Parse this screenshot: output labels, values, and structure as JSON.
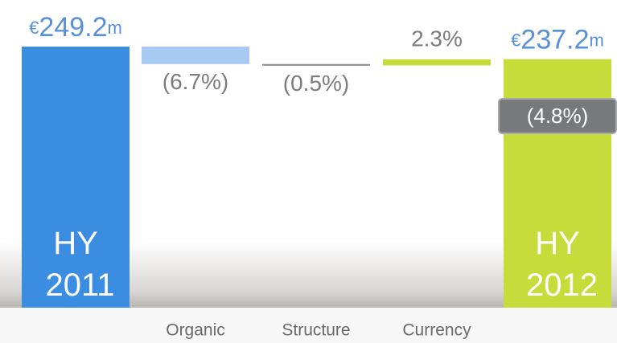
{
  "chart_data": {
    "type": "waterfall",
    "categories": [
      "HY 2011",
      "Organic",
      "Structure",
      "Currency",
      "HY 2012"
    ],
    "values": [
      249.2,
      -6.7,
      -0.5,
      2.3,
      237.2
    ],
    "value_labels": [
      "€249.2m",
      "(6.7%)",
      "(0.5%)",
      "2.3%",
      "€237.2m"
    ],
    "colors": [
      "#3a8de0",
      "#a8c9f3",
      "#8a8a8a",
      "#c6dc3a",
      "#c6dc3a"
    ],
    "total_change": {
      "value": -4.8,
      "label": "(4.8%)"
    }
  }
}
